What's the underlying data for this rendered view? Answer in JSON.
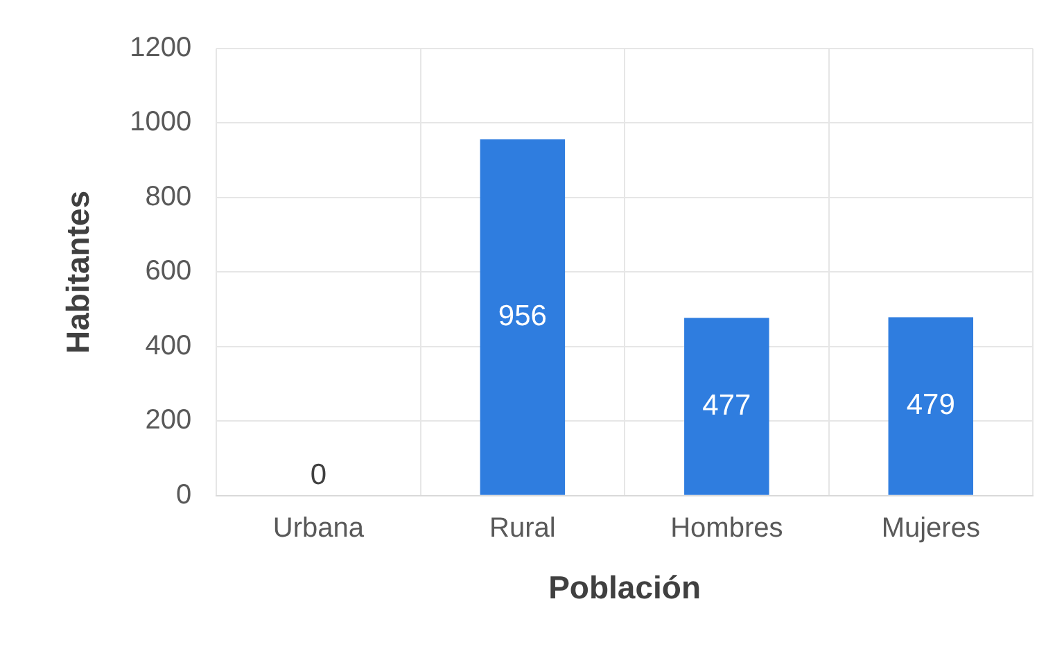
{
  "chart_data": {
    "type": "bar",
    "xlabel": "Población",
    "ylabel": "Habitantes",
    "categories": [
      "Urbana",
      "Rural",
      "Hombres",
      "Mujeres"
    ],
    "values": [
      0,
      956,
      477,
      479
    ],
    "color": "#2f7ddf",
    "ylim": [
      0,
      1200
    ],
    "yticks": [
      0,
      200,
      400,
      600,
      800,
      1000,
      1200
    ],
    "grid": true,
    "data_labels": true
  }
}
